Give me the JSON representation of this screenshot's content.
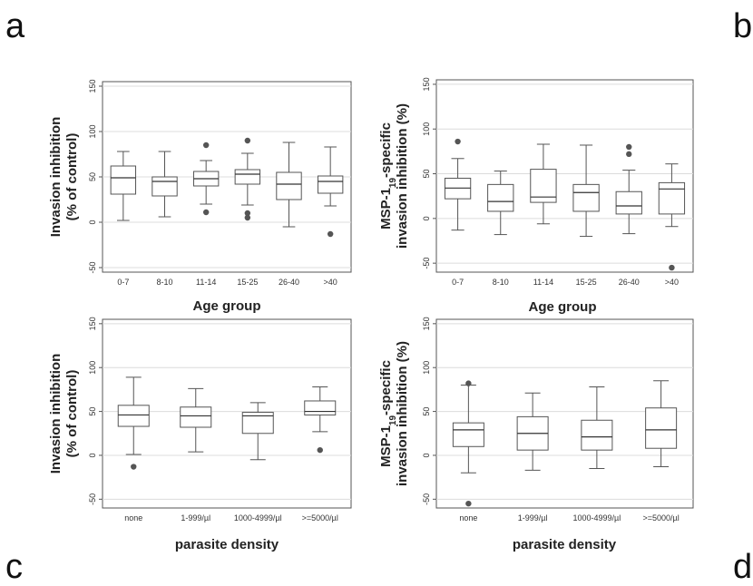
{
  "panel_letters": {
    "a": "a",
    "b": "b",
    "c": "c",
    "d": "d"
  },
  "chart_data": [
    {
      "type": "box",
      "panel": "a",
      "ylabel_line1": "Invasion inhibition",
      "ylabel_line2": "(% of control)",
      "xlabel": "Age group",
      "ylim": [
        -55,
        155
      ],
      "yticks": [
        -50,
        0,
        50,
        100,
        150
      ],
      "grid": true,
      "categories": [
        "0-7",
        "8-10",
        "11-14",
        "15-25",
        "26-40",
        ">40"
      ],
      "boxes": [
        {
          "min": 2,
          "q1": 31,
          "median": 49,
          "q3": 62,
          "max": 78,
          "outliers": []
        },
        {
          "min": 6,
          "q1": 29,
          "median": 45,
          "q3": 50,
          "max": 78,
          "outliers": []
        },
        {
          "min": 20,
          "q1": 40,
          "median": 48,
          "q3": 56,
          "max": 68,
          "outliers": [
            85,
            11
          ]
        },
        {
          "min": 19,
          "q1": 42,
          "median": 53,
          "q3": 58,
          "max": 76,
          "outliers": [
            90,
            10,
            5
          ]
        },
        {
          "min": -5,
          "q1": 25,
          "median": 42,
          "q3": 55,
          "max": 88,
          "outliers": []
        },
        {
          "min": 18,
          "q1": 32,
          "median": 45,
          "q3": 51,
          "max": 83,
          "outliers": [
            -13
          ]
        }
      ]
    },
    {
      "type": "box",
      "panel": "b",
      "ylabel_line1": "MSP-1",
      "ylabel_sub": "19",
      "ylabel_line1_suffix": "-specific",
      "ylabel_line2": "invasion inhibition (%)",
      "xlabel": "Age group",
      "ylim": [
        -60,
        155
      ],
      "yticks": [
        -50,
        0,
        50,
        100,
        150
      ],
      "grid": true,
      "categories": [
        "0-7",
        "8-10",
        "11-14",
        "15-25",
        "26-40",
        ">40"
      ],
      "boxes": [
        {
          "min": -13,
          "q1": 22,
          "median": 34,
          "q3": 45,
          "max": 67,
          "outliers": [
            86
          ]
        },
        {
          "min": -18,
          "q1": 8,
          "median": 19,
          "q3": 38,
          "max": 53,
          "outliers": []
        },
        {
          "min": -6,
          "q1": 18,
          "median": 24,
          "q3": 55,
          "max": 83,
          "outliers": []
        },
        {
          "min": -20,
          "q1": 8,
          "median": 29,
          "q3": 38,
          "max": 82,
          "outliers": []
        },
        {
          "min": -17,
          "q1": 5,
          "median": 14,
          "q3": 30,
          "max": 54,
          "outliers": [
            80,
            72
          ]
        },
        {
          "min": -9,
          "q1": 5,
          "median": 33,
          "q3": 40,
          "max": 61,
          "outliers": [
            -55
          ]
        }
      ]
    },
    {
      "type": "box",
      "panel": "c",
      "ylabel_line1": "Invasion inhibition",
      "ylabel_line2": "(% of control)",
      "xlabel": "parasite density",
      "ylim": [
        -60,
        155
      ],
      "yticks": [
        -50,
        0,
        50,
        100,
        150
      ],
      "grid": true,
      "categories": [
        "none",
        "1-999/µl",
        "1000-4999/µl",
        ">=5000/µl"
      ],
      "boxes": [
        {
          "min": 1,
          "q1": 33,
          "median": 46,
          "q3": 57,
          "max": 89,
          "outliers": [
            -13
          ]
        },
        {
          "min": 4,
          "q1": 32,
          "median": 45,
          "q3": 55,
          "max": 76,
          "outliers": []
        },
        {
          "min": -5,
          "q1": 25,
          "median": 45,
          "q3": 49,
          "max": 60,
          "outliers": []
        },
        {
          "min": 27,
          "q1": 46,
          "median": 50,
          "q3": 62,
          "max": 78,
          "outliers": [
            6
          ]
        }
      ]
    },
    {
      "type": "box",
      "panel": "d",
      "ylabel_line1": "MSP-1",
      "ylabel_sub": "19",
      "ylabel_line1_suffix": "-specific",
      "ylabel_line2": "invasion inhibition (%)",
      "xlabel": "parasite density",
      "ylim": [
        -60,
        155
      ],
      "yticks": [
        -50,
        0,
        50,
        100,
        150
      ],
      "grid": true,
      "categories": [
        "none",
        "1-999/µl",
        "1000-4999/µl",
        ">=5000/µl"
      ],
      "boxes": [
        {
          "min": -20,
          "q1": 10,
          "median": 29,
          "q3": 37,
          "max": 80,
          "outliers": [
            82,
            -55
          ]
        },
        {
          "min": -17,
          "q1": 6,
          "median": 25,
          "q3": 44,
          "max": 71,
          "outliers": []
        },
        {
          "min": -15,
          "q1": 6,
          "median": 21,
          "q3": 40,
          "max": 78,
          "outliers": []
        },
        {
          "min": -13,
          "q1": 8,
          "median": 29,
          "q3": 54,
          "max": 85,
          "outliers": []
        }
      ]
    }
  ]
}
